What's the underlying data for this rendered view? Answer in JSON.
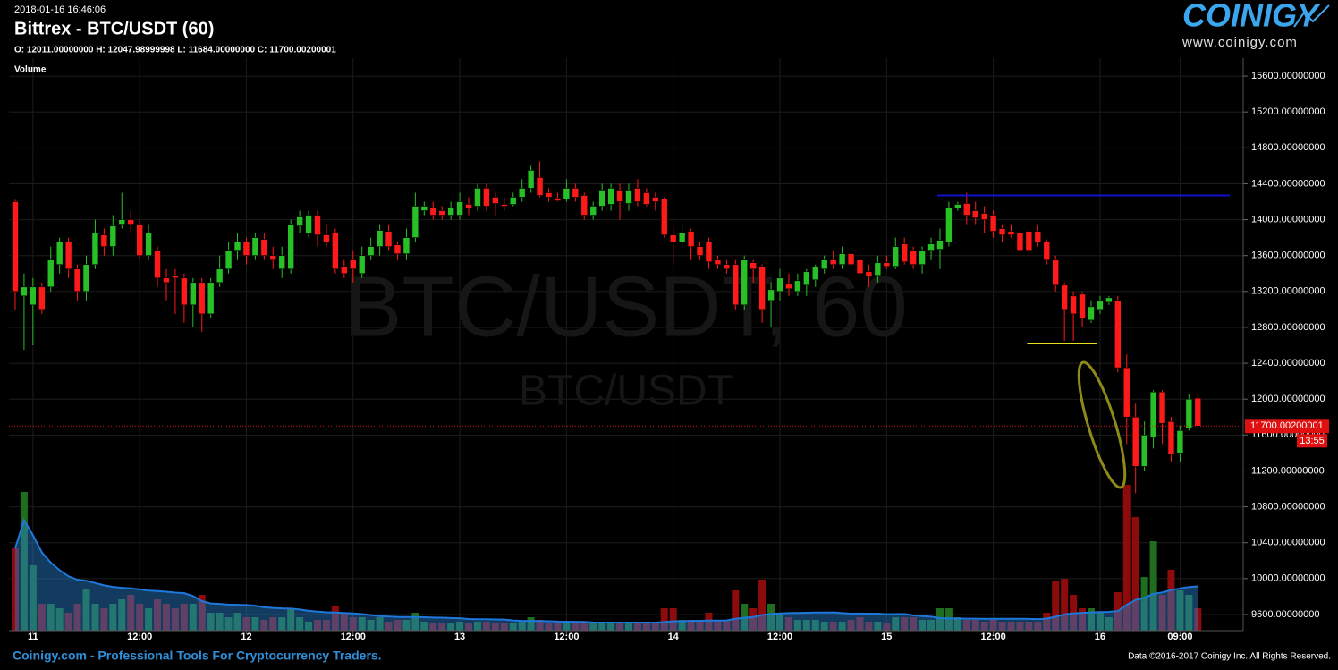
{
  "chart_data": {
    "type": "candlestick",
    "timestamp": "2018-01-16 16:46:06",
    "title": "Bittrex - BTC/USDT (60)",
    "ohlc_label": "O: 12011.00000000 H: 12047.98999998 L: 11684.00000000 C: 11700.00200001",
    "volume_label": "Volume",
    "watermark": "BTC/USDT, 60",
    "watermark_sub": "BTC/USDT",
    "logo": "COINIGY",
    "logo_url": "www.coinigy.com",
    "footer": "Coinigy.com - Professional Tools For Cryptocurrency Traders.",
    "copyright": "Data ©2016-2017 Coinigy Inc. All Rights Reserved.",
    "up_color": "#27c027",
    "down_color": "#ff1a1a",
    "volume_up_color": "#1f6e1f",
    "volume_down_color": "#8e0b0b",
    "grid": true,
    "x": [
      -2,
      -1,
      0,
      1,
      2,
      3,
      4,
      5,
      6,
      7,
      8,
      9,
      10,
      11,
      12,
      13,
      14,
      15,
      16,
      17,
      18,
      19,
      20,
      21,
      22,
      23,
      24,
      25,
      26,
      27,
      28,
      29,
      30,
      31,
      32,
      33,
      34,
      35,
      36,
      37,
      38,
      39,
      40,
      41,
      42,
      43,
      44,
      45,
      46,
      47,
      48,
      49,
      50,
      51,
      52,
      53,
      54,
      55,
      56,
      57,
      58,
      59,
      60,
      61,
      62,
      63,
      64,
      65,
      66,
      67,
      68,
      69,
      70,
      71,
      72,
      73,
      74,
      75,
      76,
      77,
      78,
      79,
      80,
      81,
      82,
      83,
      84,
      85,
      86,
      87,
      88,
      89,
      90,
      91,
      92,
      93,
      94,
      95,
      96,
      97,
      98,
      99,
      100,
      101,
      102,
      103,
      104,
      105,
      106,
      107,
      108,
      109,
      110,
      111,
      112,
      113,
      114,
      115,
      116,
      117,
      118,
      119,
      120,
      121,
      122,
      123,
      124,
      125,
      126,
      127,
      128,
      129,
      130,
      131
    ],
    "open": [
      14200,
      13150,
      13050,
      13250,
      13250,
      13500,
      13750,
      13450,
      13200,
      13500,
      13830,
      13700,
      13950,
      14000,
      13950,
      13600,
      13650,
      13350,
      13380,
      13350,
      13050,
      13300,
      12950,
      13300,
      13450,
      13650,
      13750,
      13600,
      13780,
      13600,
      13450,
      13450,
      13930,
      13850,
      14050,
      13830,
      13850,
      13480,
      13550,
      13400,
      13600,
      13700,
      13870,
      13720,
      13620,
      13800,
      14100,
      14130,
      14100,
      14050,
      14050,
      14170,
      14150,
      14350,
      14250,
      14170,
      14170,
      14250,
      14350,
      14470,
      14300,
      14240,
      14230,
      14350,
      14270,
      14050,
      14150,
      14170,
      14330,
      14180,
      14350,
      14300,
      14250,
      14230,
      13830,
      13750,
      13870,
      13700,
      13750,
      13550,
      13500,
      13500,
      13050,
      13520,
      13480,
      13100,
      13200,
      13280,
      13200,
      13270,
      13330,
      13450,
      13550,
      13500,
      13620,
      13550,
      13420,
      13380,
      13520,
      13480,
      13730,
      13650,
      13500,
      13650,
      13670,
      13750,
      14130,
      14180,
      14100,
      14070,
      14050,
      13900,
      13870,
      13850,
      13870,
      13870,
      13750,
      13550,
      13270,
      13150,
      13170,
      12880,
      13000,
      13080,
      13100,
      12350,
      11800,
      11250,
      11580,
      12080,
      11750,
      11400,
      11680,
      12011
    ],
    "high": [
      14220,
      13400,
      13350,
      13300,
      13700,
      13800,
      13800,
      13500,
      13600,
      14000,
      13900,
      14050,
      14300,
      14100,
      14000,
      13950,
      13700,
      13450,
      13450,
      13400,
      13350,
      13350,
      13350,
      13600,
      13750,
      13850,
      13800,
      13850,
      13850,
      13700,
      13700,
      14000,
      14100,
      14100,
      14100,
      13950,
      13900,
      13550,
      13650,
      13700,
      13800,
      13950,
      13950,
      13750,
      13900,
      14300,
      14200,
      14200,
      14150,
      14200,
      14300,
      14250,
      14400,
      14400,
      14300,
      14250,
      14300,
      14450,
      14600,
      14650,
      14350,
      14300,
      14450,
      14400,
      14300,
      14200,
      14400,
      14400,
      14400,
      14400,
      14450,
      14350,
      14300,
      14250,
      13900,
      13950,
      13900,
      13750,
      13800,
      13600,
      13550,
      13550,
      13600,
      13550,
      13500,
      13300,
      13450,
      13400,
      13400,
      13450,
      13500,
      13600,
      13650,
      13700,
      13700,
      13600,
      13500,
      13600,
      13600,
      13800,
      13800,
      13700,
      13700,
      13800,
      13900,
      14200,
      14200,
      14300,
      14200,
      14150,
      14100,
      13950,
      13950,
      13900,
      13900,
      13950,
      13780,
      13600,
      13300,
      13200,
      13200,
      13100,
      13150,
      13150,
      13150,
      12500,
      11950,
      11750,
      12100,
      12100,
      11800,
      11700,
      12050,
      12047.98999998
    ],
    "low": [
      13000,
      12550,
      12600,
      12950,
      13200,
      13400,
      13350,
      13100,
      13100,
      13450,
      13600,
      13600,
      13900,
      13850,
      13550,
      13550,
      13250,
      13100,
      12950,
      12850,
      12800,
      12750,
      12900,
      13250,
      13400,
      13550,
      13500,
      13550,
      13550,
      13450,
      13350,
      13400,
      13850,
      13800,
      13700,
      13700,
      13400,
      13350,
      13300,
      13350,
      13550,
      13600,
      13650,
      13550,
      13550,
      13750,
      14050,
      14000,
      14000,
      14000,
      14000,
      14050,
      14100,
      14100,
      14050,
      14100,
      14150,
      14200,
      14300,
      14250,
      14200,
      14200,
      14200,
      14200,
      14000,
      14000,
      14100,
      14100,
      14000,
      14100,
      14150,
      14150,
      14100,
      13800,
      13500,
      13700,
      13550,
      13550,
      13450,
      13450,
      13400,
      13000,
      13000,
      13300,
      12850,
      12800,
      13100,
      13150,
      13150,
      13150,
      13250,
      13400,
      13450,
      13450,
      13450,
      13300,
      13250,
      13300,
      13450,
      13450,
      13500,
      13450,
      13400,
      13550,
      13450,
      13700,
      14100,
      13950,
      13950,
      13850,
      13800,
      13750,
      13800,
      13600,
      13600,
      13700,
      13500,
      13200,
      12650,
      12650,
      12800,
      12850,
      12950,
      13050,
      12300,
      11500,
      10950,
      11200,
      11450,
      11500,
      11300,
      11300,
      11650,
      11684
    ],
    "close": [
      13200,
      13250,
      13250,
      13000,
      13550,
      13750,
      13450,
      13200,
      13500,
      13850,
      13700,
      13930,
      14000,
      13950,
      13600,
      13850,
      13350,
      13300,
      13350,
      13050,
      13300,
      12950,
      13300,
      13450,
      13650,
      13750,
      13600,
      13800,
      13600,
      13550,
      13600,
      13950,
      14030,
      14050,
      13830,
      13750,
      13450,
      13400,
      13450,
      13600,
      13700,
      13880,
      13700,
      13620,
      13800,
      14150,
      14150,
      14050,
      14050,
      14130,
      14200,
      14130,
      14350,
      14150,
      14180,
      14150,
      14250,
      14350,
      14550,
      14270,
      14250,
      14210,
      14350,
      14250,
      14050,
      14150,
      14330,
      14350,
      14200,
      14330,
      14200,
      14170,
      14200,
      13830,
      13750,
      13850,
      13700,
      13600,
      13530,
      13500,
      13450,
      13050,
      13550,
      13450,
      13000,
      13220,
      13350,
      13230,
      13320,
      13420,
      13470,
      13550,
      13500,
      13620,
      13500,
      13400,
      13370,
      13520,
      13480,
      13700,
      13530,
      13500,
      13650,
      13730,
      13770,
      14130,
      14170,
      14050,
      14020,
      14000,
      13870,
      13830,
      13830,
      13650,
      13650,
      13750,
      13550,
      13270,
      13000,
      12950,
      12900,
      13030,
      13100,
      13130,
      12350,
      11800,
      11250,
      11600,
      12080,
      11730,
      11380,
      11650,
      12000,
      11700.00200001
    ],
    "volume": [
      92,
      155,
      73,
      30,
      30,
      25,
      20,
      30,
      47,
      30,
      25,
      30,
      35,
      40,
      30,
      25,
      35,
      30,
      25,
      30,
      30,
      40,
      20,
      20,
      15,
      20,
      15,
      15,
      12,
      15,
      15,
      25,
      15,
      10,
      12,
      12,
      28,
      20,
      15,
      15,
      12,
      15,
      10,
      12,
      12,
      20,
      10,
      8,
      8,
      8,
      10,
      8,
      10,
      10,
      8,
      8,
      8,
      10,
      15,
      12,
      8,
      8,
      8,
      8,
      10,
      8,
      8,
      8,
      8,
      8,
      8,
      8,
      8,
      25,
      25,
      12,
      12,
      12,
      20,
      12,
      12,
      45,
      30,
      25,
      57,
      30,
      20,
      15,
      12,
      12,
      12,
      10,
      10,
      10,
      12,
      15,
      10,
      10,
      8,
      15,
      15,
      15,
      12,
      12,
      25,
      25,
      15,
      12,
      12,
      10,
      12,
      10,
      10,
      10,
      10,
      10,
      20,
      55,
      58,
      40,
      25,
      25,
      20,
      15,
      43,
      163,
      127,
      60,
      100,
      40,
      68,
      45,
      40,
      25
    ],
    "vlim": [
      0,
      200
    ],
    "xlim": [
      -2.7,
      136.1
    ],
    "xticks": [
      {
        "value": 0,
        "label": "11"
      },
      {
        "value": 12,
        "label": "12:00"
      },
      {
        "value": 24,
        "label": "12"
      },
      {
        "value": 36,
        "label": "12:00"
      },
      {
        "value": 48,
        "label": "13"
      },
      {
        "value": 60,
        "label": "12:00"
      },
      {
        "value": 72,
        "label": "14"
      },
      {
        "value": 84,
        "label": "12:00"
      },
      {
        "value": 96,
        "label": "15"
      },
      {
        "value": 108,
        "label": "12:00"
      },
      {
        "value": 120,
        "label": "16"
      },
      {
        "value": 129,
        "label": "09:00"
      }
    ],
    "ylim": [
      9420,
      15800
    ],
    "yticks": [
      {
        "value": 9600,
        "label": "9600.00000000"
      },
      {
        "value": 10000,
        "label": "10000.00000000"
      },
      {
        "value": 10400,
        "label": "10400.00000000"
      },
      {
        "value": 10800,
        "label": "10800.00000000"
      },
      {
        "value": 11200,
        "label": "11200.00000000"
      },
      {
        "value": 11600,
        "label": "11600.00000000"
      },
      {
        "value": 12000,
        "label": "12000.00000000"
      },
      {
        "value": 12400,
        "label": "12400.00000000"
      },
      {
        "value": 12800,
        "label": "12800.00000000"
      },
      {
        "value": 13200,
        "label": "13200.00000000"
      },
      {
        "value": 13600,
        "label": "13600.00000000"
      },
      {
        "value": 14000,
        "label": "14000.00000000"
      },
      {
        "value": 14400,
        "label": "14400.00000000"
      },
      {
        "value": 14800,
        "label": "14800.00000000"
      },
      {
        "value": 15200,
        "label": "15200.00000000"
      },
      {
        "value": 15600,
        "label": "15600.00000000"
      }
    ],
    "last_price": {
      "value": 11700.00200001,
      "label": "11700.00200001"
    },
    "countdown": "13:55",
    "levels": [
      {
        "value": 14270,
        "from": 101.7,
        "to": 134.6,
        "color": "#1010d0"
      },
      {
        "value": 12620,
        "from": 111.8,
        "to": 119.7,
        "color": "#e6e020"
      }
    ]
  }
}
